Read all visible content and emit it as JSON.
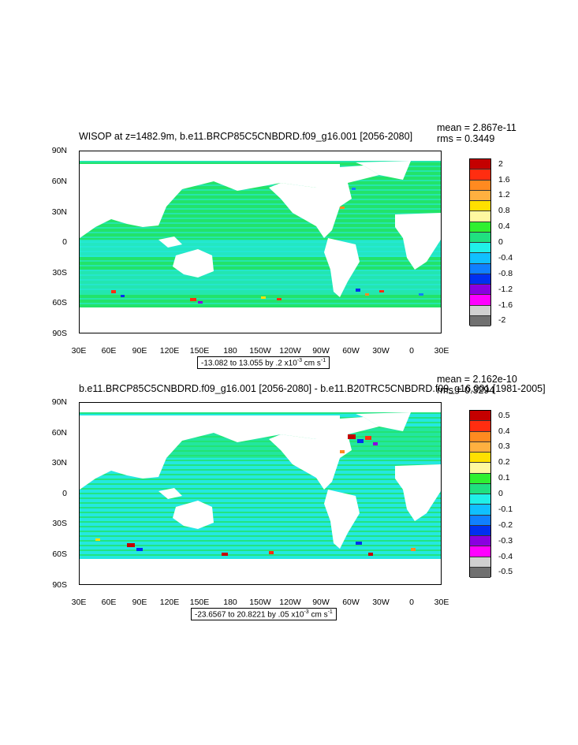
{
  "panel1": {
    "title": "WISOP at z=1482.9m, b.e11.BRCP85C5CNBDRD.f09_g16.001 [2056-2080]",
    "mean": "mean = 2.867e-11",
    "rms": "rms = 0.3449",
    "range_text": "-13.082 to 13.055 by .2 x10",
    "range_exp": "-3",
    "range_unit": " cm s",
    "range_unit_exp": "-1",
    "colorbar_labels": [
      "2",
      "1.6",
      "1.2",
      "0.8",
      "0.4",
      "0",
      "-0.4",
      "-0.8",
      "-1.2",
      "-1.6",
      "-2"
    ]
  },
  "panel2": {
    "title": "b.e11.BRCP85C5CNBDRD.f09_g16.001 [2056-2080] - b.e11.B20TRC5CNBDRD.f09_g16.001 [1981-2005]",
    "mean": "mean = 2.162e-10",
    "rms": "rms = 0.3294",
    "range_text": "-23.6567 to 20.8221 by .05 x10",
    "range_exp": "-3",
    "range_unit": " cm s",
    "range_unit_exp": "-1",
    "colorbar_labels": [
      "0.5",
      "0.4",
      "0.3",
      "0.2",
      "0.1",
      "0",
      "-0.1",
      "-0.2",
      "-0.3",
      "-0.4",
      "-0.5"
    ]
  },
  "axes": {
    "lat_labels": [
      "90N",
      "60N",
      "30N",
      "0",
      "30S",
      "60S",
      "90S"
    ],
    "lon_labels": [
      "30E",
      "60E",
      "90E",
      "120E",
      "150E",
      "180",
      "150W",
      "120W",
      "90W",
      "60W",
      "30W",
      "0",
      "30E"
    ]
  },
  "colors": {
    "ocean_base": "#22e36a",
    "ocean_cyan": "#24e8e0",
    "colorbar": [
      "#c40000",
      "#ff2d10",
      "#ff8a20",
      "#ffb040",
      "#ffe000",
      "#fff8a0",
      "#30f030",
      "#20e080",
      "#20f0e8",
      "#10c0ff",
      "#1080ff",
      "#0030f0",
      "#8a00e0",
      "#ff00ff",
      "#d0d0d0",
      "#707070"
    ]
  }
}
